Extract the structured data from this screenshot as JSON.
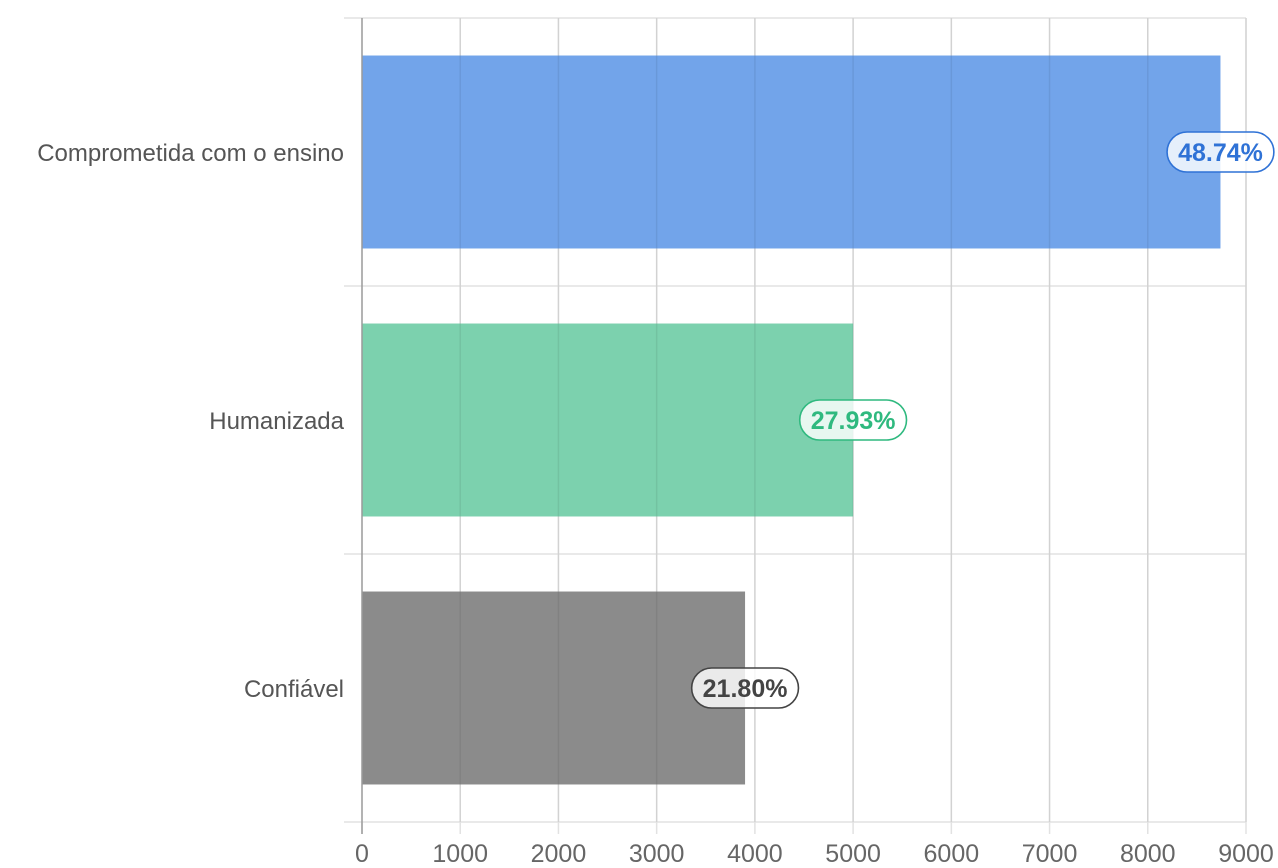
{
  "chart_data": {
    "type": "bar",
    "orientation": "horizontal",
    "categories": [
      "Comprometida com o ensino",
      "Humanizada",
      "Confiável"
    ],
    "values": [
      8740,
      5000,
      3900
    ],
    "data_labels": [
      "48.74%",
      "27.93%",
      "21.80%"
    ],
    "colors": [
      "#72a4ea",
      "#7cd1ae",
      "#8b8b8b"
    ],
    "label_text_colors": [
      "#2f72d6",
      "#2fb97f",
      "#444444"
    ],
    "label_border_colors": [
      "#2f72d6",
      "#2fb97f",
      "#444444"
    ],
    "xlim": [
      0,
      9000
    ],
    "x_ticks": [
      "0",
      "1000",
      "2000",
      "3000",
      "4000",
      "5000",
      "6000",
      "7000",
      "8000",
      "9000"
    ],
    "x_tick_values": [
      0,
      1000,
      2000,
      3000,
      4000,
      5000,
      6000,
      7000,
      8000,
      9000
    ],
    "grid": true,
    "legend": "none",
    "title": "",
    "xlabel": "",
    "ylabel": ""
  }
}
